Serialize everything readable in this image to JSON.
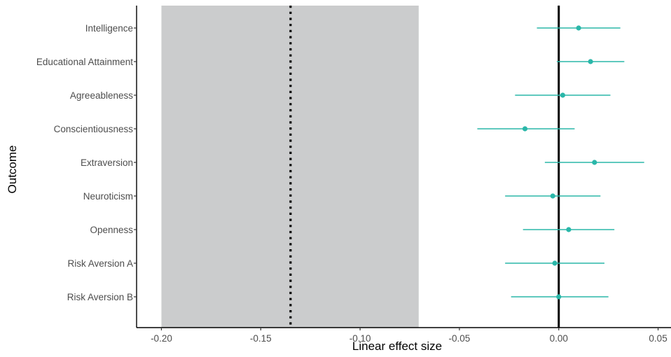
{
  "chart_data": {
    "type": "forest",
    "title": "",
    "xlabel": "Linear effect size",
    "ylabel": "Outcome",
    "xlim": [
      -0.2125,
      0.0565
    ],
    "x_ticks": [
      -0.2,
      -0.15,
      -0.1,
      -0.05,
      0.0,
      0.05
    ],
    "x_tick_labels": [
      "-0.20",
      "-0.15",
      "-0.10",
      "-0.05",
      "0.00",
      "0.05"
    ],
    "reference_line": 0.0,
    "shaded_region": [
      -0.2,
      -0.0705
    ],
    "dotted_line": -0.135,
    "grid": false,
    "colors": {
      "point": "#2ab7a9",
      "shade": "#cbcccd",
      "reference": "#000000"
    },
    "categories": [
      "Intelligence",
      "Educational Attainment",
      "Agreeableness",
      "Conscientiousness",
      "Extraversion",
      "Neuroticism",
      "Openness",
      "Risk Aversion A",
      "Risk Aversion B"
    ],
    "estimates": [
      0.01,
      0.016,
      0.002,
      -0.017,
      0.018,
      -0.003,
      0.005,
      -0.002,
      0.0
    ],
    "ci_lower": [
      -0.011,
      -0.001,
      -0.022,
      -0.041,
      -0.007,
      -0.027,
      -0.018,
      -0.027,
      -0.024
    ],
    "ci_upper": [
      0.031,
      0.033,
      0.026,
      0.008,
      0.043,
      0.021,
      0.028,
      0.023,
      0.025
    ]
  }
}
